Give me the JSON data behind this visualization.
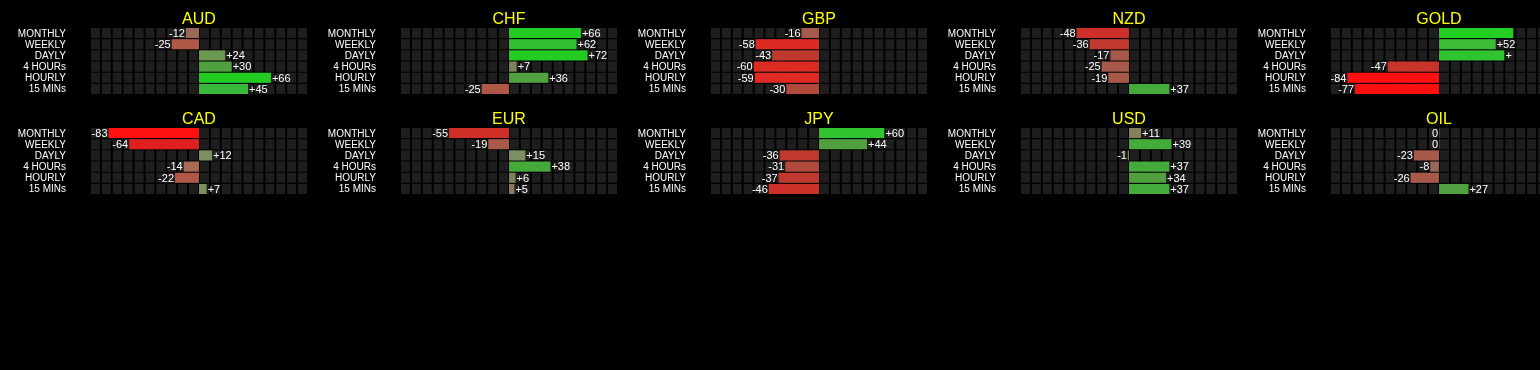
{
  "chart_data": [
    {
      "type": "bar",
      "orientation": "horizontal",
      "title": "AUD",
      "categories": [
        "MONTHLY",
        "WEEKLY",
        "DAYLY",
        "4 HOURs",
        "HOURLY",
        "15 MINs"
      ],
      "xlim": [
        -100,
        100
      ],
      "values": [
        -12,
        -25,
        24,
        30,
        66,
        45
      ],
      "value_labels": [
        "-12",
        "-25",
        "+24",
        "+30",
        "+66",
        "+45"
      ],
      "colors": [
        "#9a6a58",
        "#b05848",
        "#6a9a50",
        "#50a040",
        "#22cc22",
        "#3ab83a"
      ]
    },
    {
      "type": "bar",
      "orientation": "horizontal",
      "title": "CHF",
      "categories": [
        "MONTHLY",
        "WEEKLY",
        "DAYLY",
        "4 HOURs",
        "HOURLY",
        "15 MINs"
      ],
      "xlim": [
        -100,
        100
      ],
      "values": [
        66,
        62,
        72,
        7,
        36,
        -25
      ],
      "value_labels": [
        "+66",
        "+62",
        "+72",
        "+7",
        "+36",
        "-25"
      ],
      "colors": [
        "#22cc22",
        "#30c030",
        "#22cc22",
        "#80805a",
        "#50a040",
        "#b05848"
      ]
    },
    {
      "type": "bar",
      "orientation": "horizontal",
      "title": "GBP",
      "categories": [
        "MONTHLY",
        "WEEKLY",
        "DAYLY",
        "4 HOURs",
        "HOURLY",
        "15 MINs"
      ],
      "xlim": [
        -100,
        100
      ],
      "values": [
        -16,
        -58,
        -43,
        -60,
        -59,
        -30
      ],
      "value_labels": [
        "-16",
        "-58",
        "-43",
        "-60",
        "-59",
        "-30"
      ],
      "colors": [
        "#a85a4a",
        "#dd2a22",
        "#c0392e",
        "#dd2a22",
        "#dd2a22",
        "#b04a3c"
      ]
    },
    {
      "type": "bar",
      "orientation": "horizontal",
      "title": "NZD",
      "categories": [
        "MONTHLY",
        "WEEKLY",
        "DAYLY",
        "4 HOURs",
        "HOURLY",
        "15 MINs"
      ],
      "xlim": [
        -100,
        100
      ],
      "values": [
        -48,
        -36,
        -17,
        -25,
        -19,
        37
      ],
      "value_labels": [
        "-48",
        "-36",
        "-17",
        "-25",
        "-19",
        "+37"
      ],
      "colors": [
        "#cc3028",
        "#c0392e",
        "#a85a4a",
        "#a85a4a",
        "#a85a4a",
        "#44aa3a"
      ]
    },
    {
      "type": "bar",
      "orientation": "horizontal",
      "title": "GOLD",
      "categories": [
        "MONTHLY",
        "WEEKLY",
        "DAYLY",
        "4 HOURs",
        "HOURLY",
        "15 MINs"
      ],
      "xlim": [
        -100,
        100
      ],
      "values": [
        68,
        52,
        60,
        -47,
        -84,
        -77
      ],
      "value_labels": [
        null,
        "+52",
        "+",
        "-47",
        "-84",
        "-77"
      ],
      "colors": [
        "#22d022",
        "#3cbb34",
        "#30c430",
        "#c8342c",
        "#ff1010",
        "#ff1010"
      ]
    },
    {
      "type": "bar",
      "orientation": "horizontal",
      "title": "CAD",
      "categories": [
        "MONTHLY",
        "WEEKLY",
        "DAYLY",
        "4 HOURs",
        "HOURLY",
        "15 MINs"
      ],
      "xlim": [
        -100,
        100
      ],
      "values": [
        -83,
        -64,
        12,
        -14,
        -22,
        7
      ],
      "value_labels": [
        "-83",
        "-64",
        "+12",
        "-14",
        "-22",
        "+7"
      ],
      "colors": [
        "#ff1010",
        "#e02020",
        "#7a9060",
        "#a86a54",
        "#b05848",
        "#7a9060"
      ]
    },
    {
      "type": "bar",
      "orientation": "horizontal",
      "title": "EUR",
      "categories": [
        "MONTHLY",
        "WEEKLY",
        "DAYLY",
        "4 HOURs",
        "HOURLY",
        "15 MINs"
      ],
      "xlim": [
        -100,
        100
      ],
      "values": [
        -55,
        -19,
        15,
        38,
        6,
        5
      ],
      "value_labels": [
        "-55",
        "-19",
        "+15",
        "+38",
        "+6",
        "+5"
      ],
      "colors": [
        "#d03028",
        "#a85a4a",
        "#7a9060",
        "#44aa3a",
        "#80805a",
        "#8a7a5a"
      ]
    },
    {
      "type": "bar",
      "orientation": "horizontal",
      "title": "JPY",
      "categories": [
        "MONTHLY",
        "WEEKLY",
        "DAYLY",
        "4 HOURs",
        "HOURLY",
        "15 MINs"
      ],
      "xlim": [
        -100,
        100
      ],
      "values": [
        60,
        44,
        -36,
        -31,
        -37,
        -46
      ],
      "value_labels": [
        "+60",
        "+44",
        "-36",
        "-31",
        "-37",
        "-46"
      ],
      "colors": [
        "#30c430",
        "#50a040",
        "#c0392e",
        "#b04a3c",
        "#c0392e",
        "#cc3028"
      ]
    },
    {
      "type": "bar",
      "orientation": "horizontal",
      "title": "USD",
      "categories": [
        "MONTHLY",
        "WEEKLY",
        "DAYLY",
        "4 HOURs",
        "HOURLY",
        "15 MINs"
      ],
      "xlim": [
        -100,
        100
      ],
      "values": [
        11,
        39,
        -1,
        37,
        34,
        37
      ],
      "value_labels": [
        "+11",
        "+39",
        "-1",
        "+37",
        "+34",
        "+37"
      ],
      "colors": [
        "#8a805a",
        "#44aa3a",
        "#8a7a5a",
        "#44aa3a",
        "#50a040",
        "#44aa3a"
      ]
    },
    {
      "type": "bar",
      "orientation": "horizontal",
      "title": "OIL",
      "categories": [
        "MONTHLY",
        "WEEKLY",
        "DAYLY",
        "4 HOURs",
        "HOURLY",
        "15 MINs"
      ],
      "xlim": [
        -100,
        100
      ],
      "values": [
        0,
        0,
        -23,
        -8,
        -26,
        27
      ],
      "value_labels": [
        "0",
        "0",
        "-23",
        "-8",
        "-26",
        "+27"
      ],
      "colors": [
        "#8a7a5a",
        "#8a7a5a",
        "#a85a4a",
        "#9a6a58",
        "#a85a4a",
        "#50a040"
      ]
    }
  ]
}
